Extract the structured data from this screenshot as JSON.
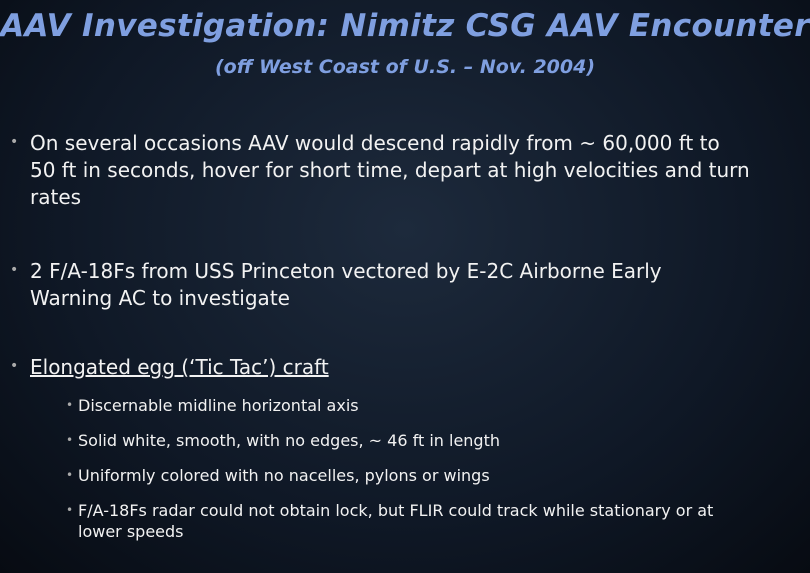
{
  "header": {
    "title": "AAV Investigation: Nimitz CSG AAV Encounter",
    "subtitle": "(off  West Coast of U.S. – Nov. 2004)"
  },
  "bullets": [
    {
      "text": "On several occasions AAV would descend rapidly from ~ 60,000 ft to 50 ft in seconds, hover for short time, depart at high velocities and turn rates"
    },
    {
      "text": "2 F/A-18Fs from USS Princeton vectored by E-2C Airborne Early Warning AC to investigate"
    },
    {
      "text": "Elongated egg (‘Tic Tac’) craft",
      "sub": [
        "Discernable midline horizontal axis",
        "Solid white, smooth, with no edges, ~ 46 ft in length",
        "Uniformly colored with no nacelles, pylons or wings",
        "F/A-18Fs radar could not obtain lock, but FLIR could track while stationary or at lower speeds"
      ]
    }
  ]
}
